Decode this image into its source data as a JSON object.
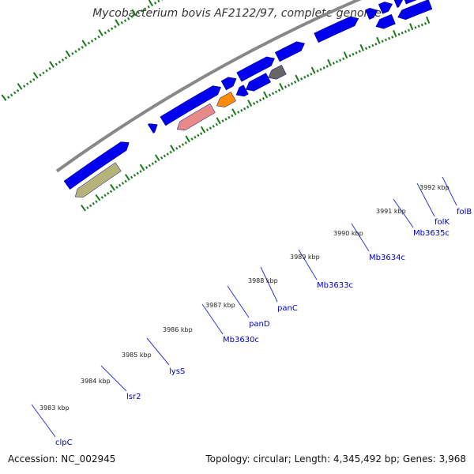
{
  "title": "Mycobacterium bovis AF2122/97, complete genome",
  "accession": "Accession: NC_002945",
  "stats": "Topology: circular; Length: 4,345,492 bp; Genes: 3,968",
  "kbp_labels": [
    "3983 kbp",
    "3984 kbp",
    "3985 kbp",
    "3986 kbp",
    "3987 kbp",
    "3988 kbp",
    "3989 kbp",
    "3990 kbp",
    "3991 kbp",
    "3992 kbp"
  ],
  "genes": [
    "clpC",
    "lsr2",
    "lysS",
    "Mb3630c",
    "panD",
    "panC",
    "Mb3633c",
    "Mb3634c",
    "Mb3635c",
    "folK",
    "folB"
  ],
  "colors": {
    "backbone": "#888888",
    "forward_gene": "#0000ee",
    "reverse_gene": "#0000ee",
    "ticks": "#1a7a1a",
    "gene_label": "#0000cc",
    "khaki": "#b5b37a",
    "pink": "#e88a8a",
    "orange": "#ff8c00",
    "gray": "#666666"
  }
}
